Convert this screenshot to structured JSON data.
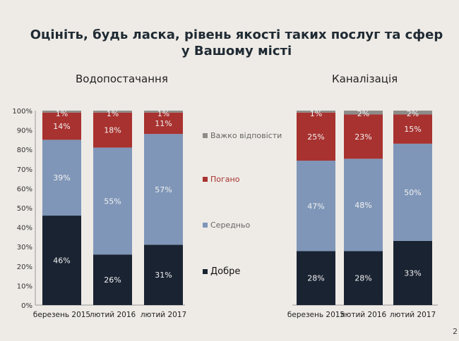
{
  "title": "Оцініть, будь ласка, рівень якості таких послуг та сфер у Вашому місті",
  "page_number": "2",
  "colors": {
    "Важко відповісти": "#8e8c89",
    "Погано": "#a8322f",
    "Середньо": "#7f96b8",
    "Добре": "#1a2332"
  },
  "chart_data": [
    {
      "type": "bar",
      "stacked": true,
      "title": "Водопостачання",
      "categories": [
        "березень 2015",
        "лютий 2016",
        "лютий 2017"
      ],
      "ylim": [
        0,
        100
      ],
      "yticks": [
        "0%",
        "10%",
        "20%",
        "30%",
        "40%",
        "50%",
        "60%",
        "70%",
        "80%",
        "90%",
        "100%"
      ],
      "series": [
        {
          "name": "Добре",
          "values": [
            46,
            26,
            31
          ]
        },
        {
          "name": "Середньо",
          "values": [
            39,
            55,
            57
          ]
        },
        {
          "name": "Погано",
          "values": [
            14,
            18,
            11
          ]
        },
        {
          "name": "Важко відповісти",
          "values": [
            1,
            1,
            1
          ]
        }
      ],
      "legend": "right"
    },
    {
      "type": "bar",
      "stacked": true,
      "title": "Каналізація",
      "categories": [
        "березень 2015",
        "лютий 2016",
        "лютий 2017"
      ],
      "ylim": [
        0,
        100
      ],
      "series": [
        {
          "name": "Добре",
          "values": [
            28,
            28,
            33
          ]
        },
        {
          "name": "Середньо",
          "values": [
            47,
            48,
            50
          ]
        },
        {
          "name": "Погано",
          "values": [
            25,
            23,
            15
          ]
        },
        {
          "name": "Важко відповісти",
          "values": [
            1,
            2,
            2
          ]
        }
      ]
    }
  ],
  "legend": [
    "Важко відповісти",
    "Погано",
    "Середньо",
    "Добре"
  ]
}
